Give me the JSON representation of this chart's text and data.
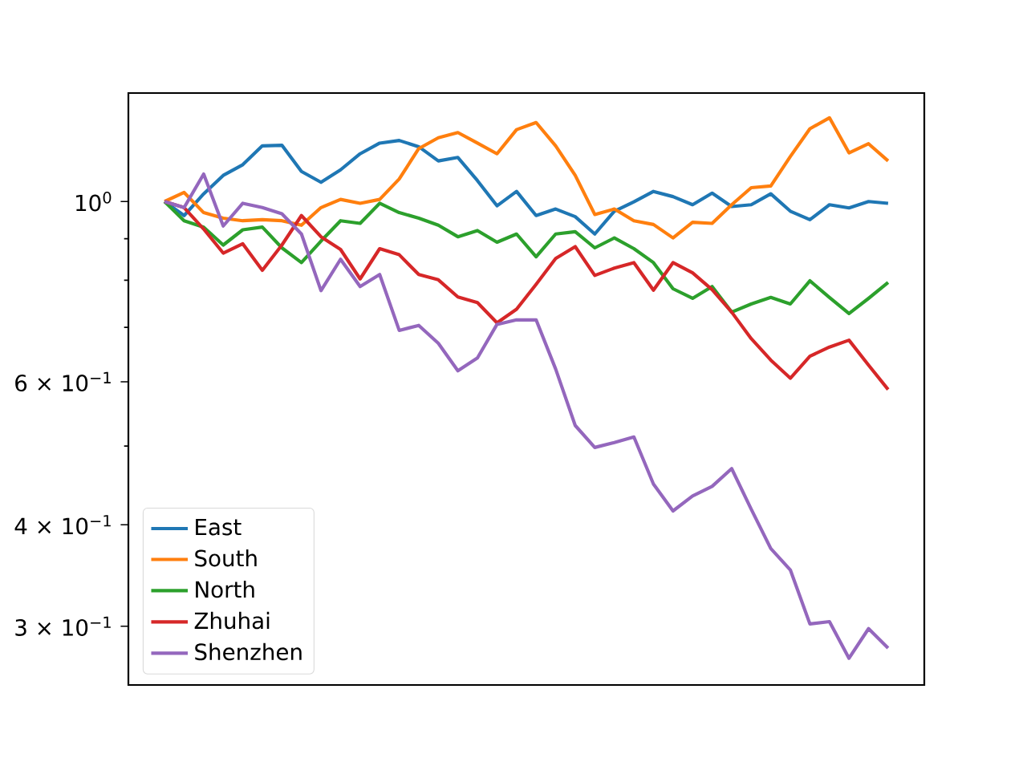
{
  "chart_data": {
    "type": "line",
    "log": "y",
    "legend": "bottom left",
    "tick_labels": "y",
    "categories": [
      null,
      null,
      null,
      null,
      null,
      null,
      null,
      null,
      null,
      null,
      null,
      null,
      null,
      null,
      null,
      null,
      null,
      null,
      null,
      null,
      null,
      null,
      null,
      null,
      null,
      null,
      null,
      null,
      null,
      null,
      null,
      null,
      null,
      null,
      null,
      null,
      null,
      null
    ],
    "ylim": [
      0.254,
      1.36
    ],
    "yticks": [
      {
        "value": 0.3,
        "label": "3 × 10$^{−1}$"
      },
      {
        "value": 0.4,
        "label": "4 × 10$^{−1}$"
      },
      {
        "value": 0.5,
        "label": null
      },
      {
        "value": 0.6,
        "label": "6 × 10$^{−1}$"
      },
      {
        "value": 0.7,
        "label": null
      },
      {
        "value": 0.8,
        "label": null
      },
      {
        "value": 0.9,
        "label": null
      },
      {
        "value": 1,
        "label": "10$^{0}$"
      }
    ],
    "series": [
      {
        "name": "East",
        "color": "#1f77b4",
        "values": [
          1.0,
          0.961,
          1.022,
          1.077,
          1.11,
          1.171,
          1.173,
          1.089,
          1.056,
          1.094,
          1.145,
          1.18,
          1.189,
          1.168,
          1.122,
          1.133,
          1.061,
          0.988,
          1.029,
          0.961,
          0.979,
          0.958,
          0.912,
          0.973,
          0.999,
          1.029,
          1.014,
          0.991,
          1.024,
          0.986,
          0.991,
          1.022,
          0.973,
          0.95,
          0.991,
          0.982,
          1.0,
          0.995
        ]
      },
      {
        "name": "South",
        "color": "#ff7f0e",
        "values": [
          1.0,
          1.026,
          0.969,
          0.954,
          0.947,
          0.95,
          0.947,
          0.935,
          0.983,
          1.006,
          0.995,
          1.006,
          1.066,
          1.162,
          1.198,
          1.216,
          1.18,
          1.145,
          1.226,
          1.251,
          1.171,
          1.077,
          0.964,
          0.979,
          0.947,
          0.937,
          0.902,
          0.943,
          0.94,
          0.991,
          1.04,
          1.045,
          1.136,
          1.229,
          1.268,
          1.148,
          1.178,
          1.122
        ]
      },
      {
        "name": "North",
        "color": "#2ca02c",
        "values": [
          1.0,
          0.947,
          0.93,
          0.884,
          0.923,
          0.93,
          0.877,
          0.841,
          0.894,
          0.947,
          0.94,
          0.995,
          0.969,
          0.954,
          0.935,
          0.905,
          0.921,
          0.891,
          0.912,
          0.855,
          0.912,
          0.918,
          0.877,
          0.902,
          0.875,
          0.841,
          0.781,
          0.76,
          0.786,
          0.731,
          0.748,
          0.762,
          0.748,
          0.799,
          0.762,
          0.728,
          0.76,
          0.795
        ]
      },
      {
        "name": "Zhuhai",
        "color": "#d62728",
        "values": [
          1.0,
          0.983,
          0.925,
          0.864,
          0.887,
          0.823,
          0.884,
          0.961,
          0.905,
          0.873,
          0.803,
          0.875,
          0.86,
          0.813,
          0.801,
          0.763,
          0.751,
          0.709,
          0.737,
          0.791,
          0.851,
          0.88,
          0.811,
          0.828,
          0.841,
          0.778,
          0.841,
          0.817,
          0.779,
          0.731,
          0.678,
          0.638,
          0.606,
          0.645,
          0.662,
          0.675,
          0.629,
          0.587
        ]
      },
      {
        "name": "Shenzhen",
        "color": "#9467bd",
        "values": [
          1.0,
          0.983,
          1.081,
          0.933,
          0.995,
          0.983,
          0.966,
          0.912,
          0.777,
          0.849,
          0.786,
          0.813,
          0.694,
          0.704,
          0.669,
          0.619,
          0.642,
          0.706,
          0.715,
          0.715,
          0.622,
          0.53,
          0.498,
          0.505,
          0.513,
          0.449,
          0.416,
          0.434,
          0.446,
          0.469,
          0.418,
          0.374,
          0.352,
          0.302,
          0.304,
          0.274,
          0.298,
          0.282
        ]
      }
    ]
  }
}
